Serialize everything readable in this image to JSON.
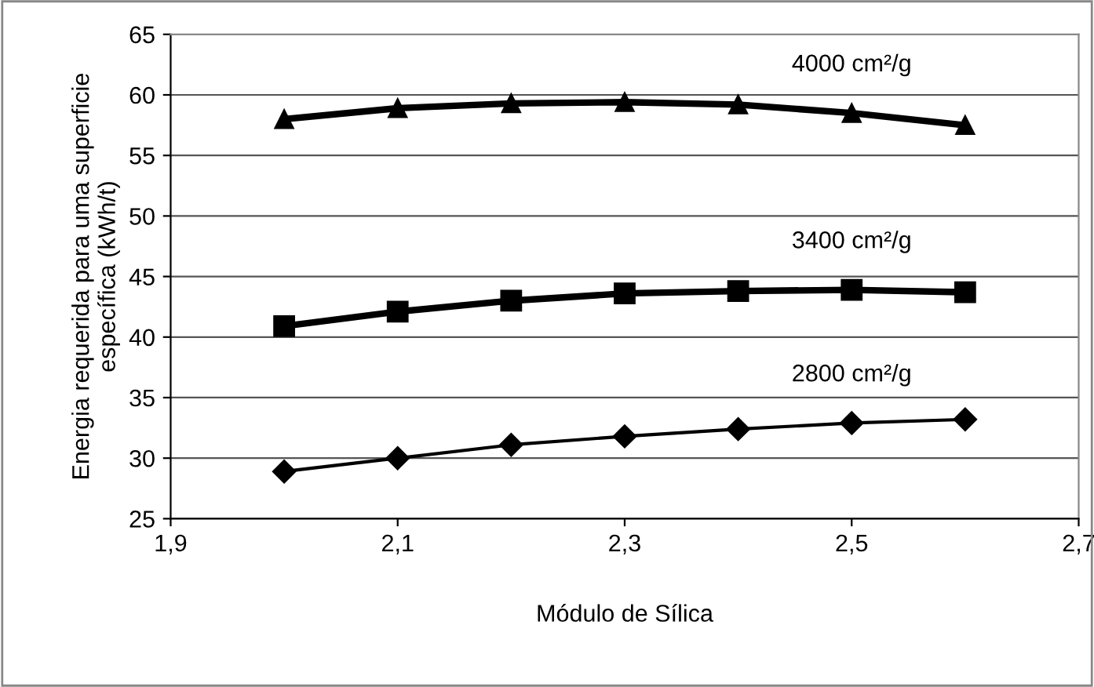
{
  "chart_data": {
    "type": "line",
    "xlabel": "Módulo de Sílica",
    "ylabel": "Energia requerida para uma superficie\nespecífica (kWh/t)",
    "x": [
      2.0,
      2.1,
      2.2,
      2.3,
      2.4,
      2.5,
      2.6
    ],
    "xlim": [
      1.9,
      2.7
    ],
    "xticks": [
      {
        "value": 1.9,
        "label": "1,9"
      },
      {
        "value": 2.1,
        "label": "2,1"
      },
      {
        "value": 2.3,
        "label": "2,3"
      },
      {
        "value": 2.5,
        "label": "2,5"
      },
      {
        "value": 2.7,
        "label": "2,7"
      }
    ],
    "ylim": [
      25,
      65
    ],
    "yticks": [
      25,
      30,
      35,
      40,
      45,
      50,
      55,
      60,
      65
    ],
    "grid": "y",
    "legend": false,
    "series": [
      {
        "name": "4000 cm²/g",
        "color": "#000000",
        "marker": "triangle",
        "values": [
          58.0,
          58.9,
          59.3,
          59.4,
          59.2,
          58.5,
          57.5
        ]
      },
      {
        "name": "3400 cm²/g",
        "color": "#000000",
        "marker": "square",
        "values": [
          40.9,
          42.1,
          43.0,
          43.6,
          43.8,
          43.9,
          43.7
        ]
      },
      {
        "name": "2800 cm²/g",
        "color": "#000000",
        "marker": "diamond",
        "values": [
          28.9,
          30.0,
          31.1,
          31.8,
          32.4,
          32.9,
          33.2
        ]
      }
    ]
  }
}
